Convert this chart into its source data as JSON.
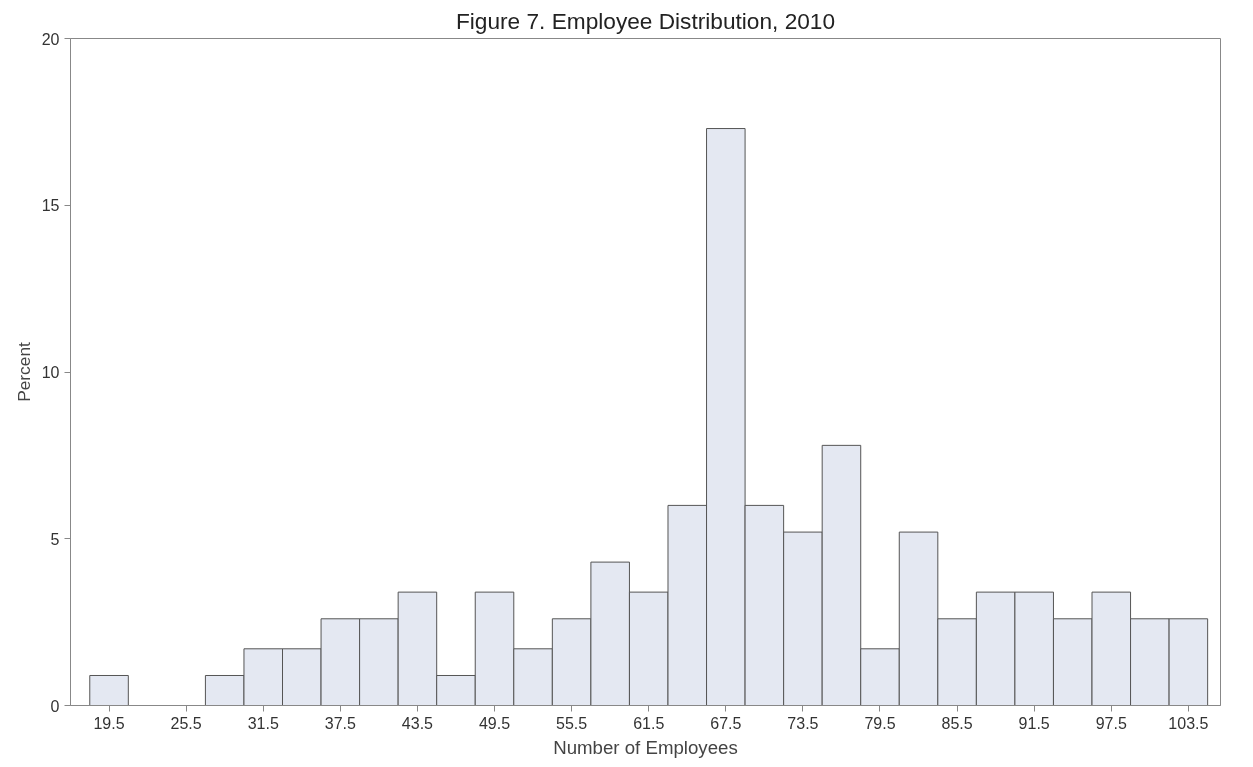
{
  "chart_data": {
    "type": "histogram",
    "title": "Figure 7. Employee Distribution, 2010",
    "xlabel": "Number of Employees",
    "ylabel": "Percent",
    "bins": [
      18,
      21,
      24,
      27,
      30,
      33,
      36,
      39,
      42,
      45,
      48,
      51,
      54,
      57,
      60,
      63,
      66,
      69,
      72,
      75,
      78,
      81,
      84,
      87,
      90,
      93,
      96,
      99,
      102,
      105
    ],
    "values": [
      0.9,
      0,
      0,
      0.9,
      1.7,
      1.7,
      2.6,
      2.6,
      3.4,
      0.9,
      3.4,
      1.7,
      2.6,
      4.3,
      3.4,
      6.0,
      17.3,
      6.0,
      5.2,
      7.8,
      1.7,
      5.2,
      2.6,
      3.4,
      3.4,
      2.6,
      3.4,
      2.6,
      2.6
    ],
    "color": "#e4e8f2",
    "xlim": [
      16.5,
      106
    ],
    "ylim": [
      0,
      20
    ],
    "xticks": [
      19.5,
      25.5,
      31.5,
      37.5,
      43.5,
      49.5,
      55.5,
      61.5,
      67.5,
      73.5,
      79.5,
      85.5,
      91.5,
      97.5,
      103.5
    ],
    "yticks": [
      0,
      5,
      10,
      15,
      20
    ],
    "grid": false
  }
}
